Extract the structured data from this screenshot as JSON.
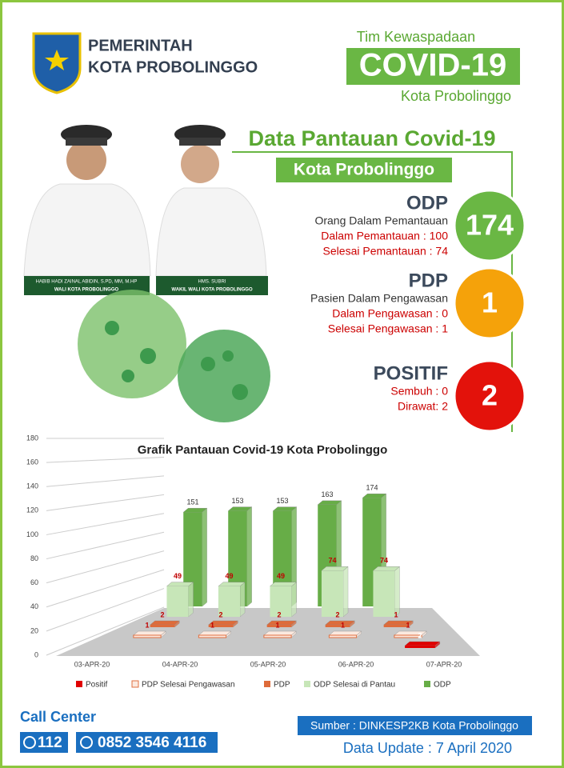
{
  "header": {
    "org_line1": "PEMERINTAH",
    "org_line2": "KOTA PROBOLINGGO",
    "team": "Tim Kewaspadaan",
    "covid": "COVID-19",
    "city": "Kota Probolinggo"
  },
  "officials": [
    {
      "name": "HABIB HADI ZAINAL ABIDIN, S.PD, MM, M.HP",
      "role": "WALI KOTA PROBOLINGGO"
    },
    {
      "name": "HMS. SUBRI",
      "role": "WAKIL WALI KOTA PROBOLINGGO"
    }
  ],
  "panel": {
    "title": "Data Pantauan Covid-19",
    "subtitle": "Kota Probolinggo"
  },
  "stats": [
    {
      "label": "ODP",
      "desc": "Orang Dalam Pemantauan",
      "lines": [
        "Dalam Pemantauan : 100",
        "Selesai Pemantauan : 74"
      ],
      "total": 174,
      "color": "#6ab744"
    },
    {
      "label": "PDP",
      "desc": "Pasien Dalam Pengawasan",
      "lines": [
        "Dalam Pengawasan : 0",
        "Selesai Pengawasan : 1"
      ],
      "total": 1,
      "color": "#f5a20a"
    },
    {
      "label": "POSITIF",
      "lines": [
        "Sembuh : 0",
        "Dirawat: 2"
      ],
      "total": 2,
      "color": "#e3120b"
    }
  ],
  "chart_data": {
    "type": "bar3d",
    "title": "Grafik Pantauan Covid-19 Kota Probolinggo",
    "categories": [
      "03-APR-20",
      "04-APR-20",
      "05-APR-20",
      "06-APR-20",
      "07-APR-20"
    ],
    "series": [
      {
        "name": "Positif",
        "color": "#e00000",
        "values": [
          null,
          null,
          null,
          null,
          2
        ]
      },
      {
        "name": "PDP Selesai Pengawasan",
        "color": "#fbe9df",
        "values": [
          1,
          1,
          1,
          1,
          1
        ]
      },
      {
        "name": "PDP",
        "color": "#de6b3a",
        "values": [
          2,
          2,
          2,
          2,
          1
        ]
      },
      {
        "name": "ODP Selesai di Pantau",
        "color": "#c7e6b8",
        "values": [
          49,
          49,
          49,
          74,
          74
        ]
      },
      {
        "name": "ODP",
        "color": "#67ad47",
        "values": [
          151,
          153,
          153,
          163,
          174
        ]
      }
    ],
    "ylim": [
      0,
      180
    ],
    "yticks": [
      0,
      20,
      40,
      60,
      80,
      100,
      120,
      140,
      160,
      180
    ],
    "grid": true
  },
  "footer": {
    "call_center": "Call Center",
    "phone1": "112",
    "phone2": "0852 3546 4116",
    "source": "Sumber : DINKESP2KB Kota Probolinggo",
    "update": "Data Update : 7 April 2020"
  }
}
